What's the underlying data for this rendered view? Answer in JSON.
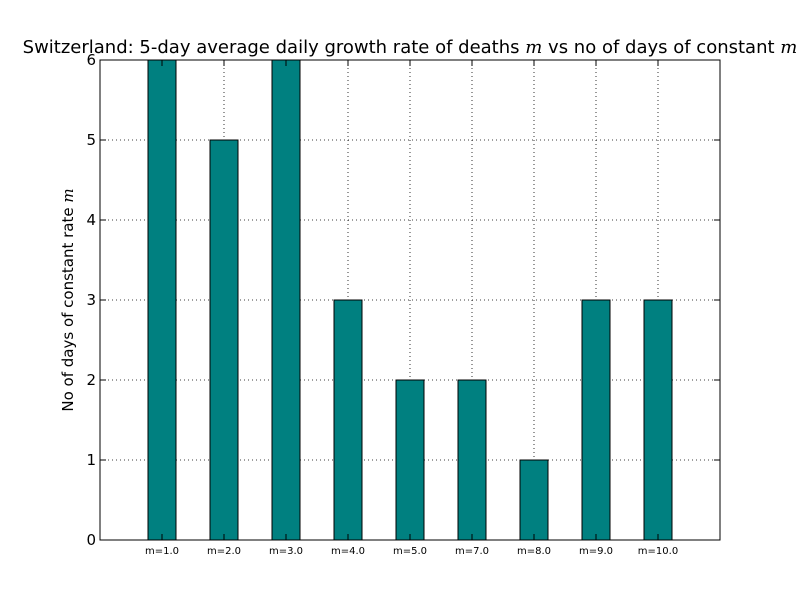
{
  "chart_data": {
    "type": "bar",
    "title_prefix": "Switzerland: 5-day average daily growth rate of deaths ",
    "title_mid": " vs no of days of constant ",
    "title_symbol": "m",
    "ylabel_prefix": "No of days of constant rate ",
    "ylabel_symbol": "m",
    "xlabel": "",
    "categories": [
      "m=1.0",
      "m=2.0",
      "m=3.0",
      "m=4.0",
      "m=5.0",
      "m=7.0",
      "m=8.0",
      "m=9.0",
      "m=10.0"
    ],
    "values": [
      6,
      5,
      6,
      3,
      2,
      2,
      1,
      3,
      3
    ],
    "ylim": [
      0,
      6
    ],
    "yticks": [
      "0",
      "1",
      "2",
      "3",
      "4",
      "5",
      "6"
    ],
    "bar_color": "#008080",
    "grid": true
  }
}
